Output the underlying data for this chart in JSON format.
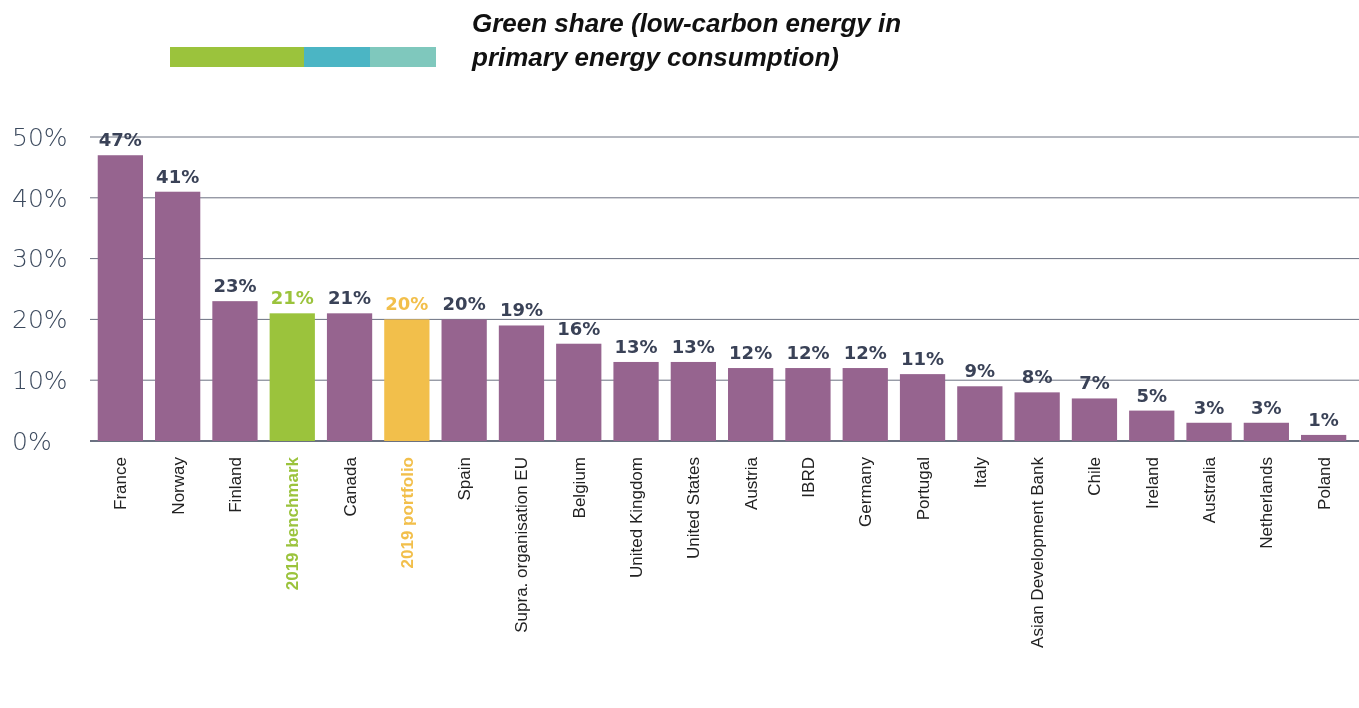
{
  "chart_data": {
    "type": "bar",
    "title": "Green share (low-carbon energy in primary energy consumption)",
    "categories": [
      "France",
      "Norway",
      "Finland",
      "2019 benchmark",
      "Canada",
      "2019 portfolio",
      "Spain",
      "Supra. organisation EU",
      "Belgium",
      "United Kingdom",
      "United States",
      "Austria",
      "IBRD",
      "Germany",
      "Portugal",
      "Italy",
      "Asian Development Bank",
      "Chile",
      "Ireland",
      "Australia",
      "Netherlands",
      "Poland"
    ],
    "values": [
      47,
      41,
      23,
      21,
      21,
      20,
      20,
      19,
      16,
      13,
      13,
      12,
      12,
      12,
      11,
      9,
      8,
      7,
      5,
      3,
      3,
      1
    ],
    "color": "#96648f",
    "colors": [
      "#96648f",
      "#96648f",
      "#96648f",
      "#9bc33c",
      "#96648f",
      "#f2bf4b",
      "#96648f",
      "#96648f",
      "#96648f",
      "#96648f",
      "#96648f",
      "#96648f",
      "#96648f",
      "#96648f",
      "#96648f",
      "#96648f",
      "#96648f",
      "#96648f",
      "#96648f",
      "#96648f",
      "#96648f",
      "#96648f"
    ],
    "value_labels": [
      "47%",
      "41%",
      "23%",
      "21%",
      "21%",
      "20%",
      "20%",
      "19%",
      "16%",
      "13%",
      "13%",
      "12%",
      "12%",
      "12%",
      "11%",
      "9%",
      "8%",
      "7%",
      "5%",
      "3%",
      "3%",
      "1%"
    ],
    "ylim": [
      0,
      50
    ],
    "yticks": [
      {
        "value": 0,
        "label": "0%"
      },
      {
        "value": 10,
        "label": "10%"
      },
      {
        "value": 20,
        "label": "20%"
      },
      {
        "value": 30,
        "label": "30%"
      },
      {
        "value": 40,
        "label": "40%"
      },
      {
        "value": 50,
        "label": "50%"
      }
    ],
    "grid": "y"
  }
}
